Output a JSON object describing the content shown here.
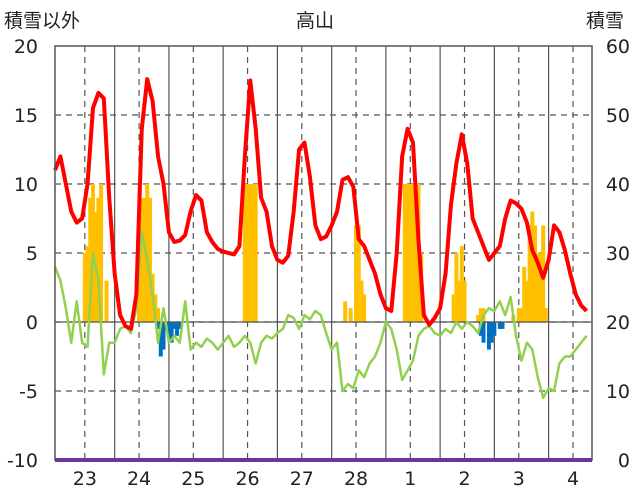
{
  "chart_data": {
    "type": "line",
    "title": "高山",
    "ylabel_left": "積雪以外",
    "ylabel_right": "積雪",
    "ylim_left": [
      -10,
      20
    ],
    "ylim_right": [
      0,
      60
    ],
    "yticks_left": [
      "20",
      "15",
      "10",
      "5",
      "0",
      "-5",
      "-10"
    ],
    "yticks_right": [
      "60",
      "50",
      "40",
      "30",
      "20",
      "10",
      "0"
    ],
    "xticks": [
      "23",
      "24",
      "25",
      "26",
      "27",
      "28",
      "1",
      "2",
      "3",
      "4"
    ],
    "grid": true,
    "colors": {
      "max_temp": "#ff0000",
      "min_temp": "#92d050",
      "snow_pos": "#ffc000",
      "snow_neg": "#0070c0",
      "baseline": "#7030a0"
    },
    "series_red": [
      [
        22.5,
        11.0
      ],
      [
        22.6,
        12.0
      ],
      [
        22.7,
        10.0
      ],
      [
        22.8,
        8.0
      ],
      [
        22.9,
        7.2
      ],
      [
        23.0,
        7.5
      ],
      [
        23.1,
        10.0
      ],
      [
        23.2,
        15.5
      ],
      [
        23.3,
        16.6
      ],
      [
        23.4,
        16.2
      ],
      [
        23.5,
        9.0
      ],
      [
        23.6,
        3.5
      ],
      [
        23.7,
        0.5
      ],
      [
        23.8,
        -0.3
      ],
      [
        23.9,
        -0.5
      ],
      [
        24.0,
        2.0
      ],
      [
        24.1,
        14.0
      ],
      [
        24.2,
        17.6
      ],
      [
        24.3,
        16.0
      ],
      [
        24.4,
        12.0
      ],
      [
        24.5,
        10.0
      ],
      [
        24.6,
        6.5
      ],
      [
        24.7,
        5.8
      ],
      [
        24.8,
        5.9
      ],
      [
        24.9,
        6.3
      ],
      [
        25.0,
        8.0
      ],
      [
        25.1,
        9.2
      ],
      [
        25.2,
        8.8
      ],
      [
        25.3,
        6.5
      ],
      [
        25.4,
        5.8
      ],
      [
        25.5,
        5.3
      ],
      [
        25.6,
        5.1
      ],
      [
        25.7,
        5.0
      ],
      [
        25.8,
        4.9
      ],
      [
        25.9,
        5.5
      ],
      [
        26.0,
        12.0
      ],
      [
        26.1,
        17.5
      ],
      [
        26.2,
        14.0
      ],
      [
        26.3,
        9.0
      ],
      [
        26.4,
        8.0
      ],
      [
        26.5,
        5.5
      ],
      [
        26.6,
        4.5
      ],
      [
        26.7,
        4.3
      ],
      [
        26.8,
        4.8
      ],
      [
        26.9,
        8.0
      ],
      [
        27.0,
        12.5
      ],
      [
        27.1,
        13.0
      ],
      [
        27.2,
        10.5
      ],
      [
        27.3,
        7.0
      ],
      [
        27.4,
        6.0
      ],
      [
        27.5,
        6.2
      ],
      [
        27.6,
        7.0
      ],
      [
        27.7,
        8.0
      ],
      [
        27.8,
        10.3
      ],
      [
        27.9,
        10.5
      ],
      [
        28.0,
        9.8
      ],
      [
        28.1,
        6.0
      ],
      [
        28.2,
        5.5
      ],
      [
        28.3,
        4.5
      ],
      [
        28.4,
        3.5
      ],
      [
        28.5,
        2.0
      ],
      [
        28.6,
        1.0
      ],
      [
        28.7,
        0.8
      ],
      [
        28.8,
        5.0
      ],
      [
        28.9,
        12.0
      ],
      [
        29.0,
        14.0
      ],
      [
        29.1,
        13.0
      ],
      [
        29.2,
        6.0
      ],
      [
        29.3,
        0.5
      ],
      [
        29.4,
        -0.2
      ],
      [
        29.5,
        0.3
      ],
      [
        29.6,
        1.0
      ],
      [
        29.7,
        3.5
      ],
      [
        29.8,
        8.5
      ],
      [
        29.9,
        11.5
      ],
      [
        30.0,
        13.6
      ],
      [
        30.1,
        11.5
      ],
      [
        30.2,
        7.5
      ],
      [
        30.3,
        6.5
      ],
      [
        30.4,
        5.5
      ],
      [
        30.5,
        4.5
      ],
      [
        30.6,
        5.0
      ],
      [
        30.7,
        5.5
      ],
      [
        30.8,
        7.5
      ],
      [
        30.9,
        8.8
      ],
      [
        31.0,
        8.6
      ],
      [
        31.1,
        8.2
      ],
      [
        31.2,
        7.2
      ],
      [
        31.3,
        5.2
      ],
      [
        31.4,
        4.3
      ],
      [
        31.5,
        3.2
      ],
      [
        31.6,
        4.5
      ],
      [
        31.7,
        7.0
      ],
      [
        31.8,
        6.5
      ],
      [
        31.9,
        5.2
      ],
      [
        32.0,
        3.5
      ],
      [
        32.1,
        2.0
      ],
      [
        32.2,
        1.2
      ],
      [
        32.3,
        0.8
      ]
    ],
    "series_green": [
      [
        22.5,
        4.0
      ],
      [
        22.6,
        3.0
      ],
      [
        22.7,
        1.0
      ],
      [
        22.8,
        -1.5
      ],
      [
        22.9,
        1.5
      ],
      [
        23.0,
        -1.5
      ],
      [
        23.1,
        -1.8
      ],
      [
        23.2,
        5.0
      ],
      [
        23.3,
        3.0
      ],
      [
        23.4,
        -3.8
      ],
      [
        23.5,
        -1.5
      ],
      [
        23.6,
        -1.5
      ],
      [
        23.7,
        -0.5
      ],
      [
        23.8,
        -0.3
      ],
      [
        23.9,
        -0.8
      ],
      [
        24.0,
        1.0
      ],
      [
        24.1,
        6.5
      ],
      [
        24.2,
        4.5
      ],
      [
        24.3,
        2.0
      ],
      [
        24.4,
        -1.5
      ],
      [
        24.5,
        1.0
      ],
      [
        24.6,
        -1.5
      ],
      [
        24.7,
        -1.0
      ],
      [
        24.8,
        -1.5
      ],
      [
        24.9,
        1.5
      ],
      [
        25.0,
        -2.0
      ],
      [
        25.1,
        -1.5
      ],
      [
        25.2,
        -1.8
      ],
      [
        25.3,
        -1.2
      ],
      [
        25.4,
        -1.5
      ],
      [
        25.5,
        -2.0
      ],
      [
        25.6,
        -1.5
      ],
      [
        25.7,
        -1.0
      ],
      [
        25.8,
        -1.8
      ],
      [
        25.9,
        -1.5
      ],
      [
        26.0,
        -1.0
      ],
      [
        26.1,
        -1.5
      ],
      [
        26.2,
        -3.0
      ],
      [
        26.3,
        -1.5
      ],
      [
        26.4,
        -1.0
      ],
      [
        26.5,
        -1.2
      ],
      [
        26.6,
        -0.8
      ],
      [
        26.7,
        -0.5
      ],
      [
        26.8,
        0.5
      ],
      [
        26.9,
        0.3
      ],
      [
        27.0,
        -0.5
      ],
      [
        27.1,
        0.5
      ],
      [
        27.2,
        0.2
      ],
      [
        27.3,
        0.8
      ],
      [
        27.4,
        0.5
      ],
      [
        27.5,
        -0.8
      ],
      [
        27.6,
        -2.0
      ],
      [
        27.7,
        -1.5
      ],
      [
        27.8,
        -5.0
      ],
      [
        27.9,
        -4.5
      ],
      [
        28.0,
        -4.8
      ],
      [
        28.1,
        -3.5
      ],
      [
        28.2,
        -4.0
      ],
      [
        28.3,
        -3.0
      ],
      [
        28.4,
        -2.5
      ],
      [
        28.5,
        -1.5
      ],
      [
        28.6,
        0.0
      ],
      [
        28.7,
        -0.5
      ],
      [
        28.8,
        -2.0
      ],
      [
        28.9,
        -4.2
      ],
      [
        29.0,
        -3.5
      ],
      [
        29.1,
        -2.8
      ],
      [
        29.2,
        -1.0
      ],
      [
        29.3,
        -0.5
      ],
      [
        29.4,
        -0.3
      ],
      [
        29.5,
        -0.8
      ],
      [
        29.6,
        -1.0
      ],
      [
        29.7,
        -0.5
      ],
      [
        29.8,
        -0.8
      ],
      [
        29.9,
        0.0
      ],
      [
        30.0,
        -0.5
      ],
      [
        30.1,
        0.0
      ],
      [
        30.2,
        -0.3
      ],
      [
        30.3,
        -0.8
      ],
      [
        30.4,
        0.5
      ],
      [
        30.5,
        1.0
      ],
      [
        30.6,
        0.8
      ],
      [
        30.7,
        1.5
      ],
      [
        30.8,
        0.5
      ],
      [
        30.9,
        1.8
      ],
      [
        31.0,
        -1.0
      ],
      [
        31.1,
        -2.8
      ],
      [
        31.2,
        -1.5
      ],
      [
        31.3,
        -2.0
      ],
      [
        31.4,
        -4.0
      ],
      [
        31.5,
        -5.5
      ],
      [
        31.6,
        -4.8
      ],
      [
        31.7,
        -5.0
      ],
      [
        31.8,
        -3.0
      ],
      [
        31.9,
        -2.5
      ],
      [
        32.0,
        -2.5
      ],
      [
        32.1,
        -2.0
      ],
      [
        32.2,
        -1.5
      ],
      [
        32.3,
        -1.0
      ]
    ],
    "snow_bars": [
      [
        23.05,
        30
      ],
      [
        23.1,
        31
      ],
      [
        23.15,
        38
      ],
      [
        23.2,
        40
      ],
      [
        23.25,
        36
      ],
      [
        23.3,
        38
      ],
      [
        23.35,
        40
      ],
      [
        23.45,
        26
      ],
      [
        24.05,
        36
      ],
      [
        24.1,
        38
      ],
      [
        24.15,
        38
      ],
      [
        24.2,
        40
      ],
      [
        24.25,
        38
      ],
      [
        24.3,
        27
      ],
      [
        24.35,
        24
      ],
      [
        24.4,
        22
      ],
      [
        26.0,
        40
      ],
      [
        26.05,
        40
      ],
      [
        26.1,
        40
      ],
      [
        26.15,
        40
      ],
      [
        26.2,
        40
      ],
      [
        27.85,
        23
      ],
      [
        27.95,
        22
      ],
      [
        28.05,
        34
      ],
      [
        28.1,
        34
      ],
      [
        28.15,
        26
      ],
      [
        28.2,
        24
      ],
      [
        28.95,
        40
      ],
      [
        29.0,
        40
      ],
      [
        29.05,
        40
      ],
      [
        29.1,
        40
      ],
      [
        29.15,
        40
      ],
      [
        29.2,
        40
      ],
      [
        29.25,
        30
      ],
      [
        29.85,
        24
      ],
      [
        29.9,
        30
      ],
      [
        29.95,
        26
      ],
      [
        30.0,
        31
      ],
      [
        30.05,
        26
      ],
      [
        30.3,
        21
      ],
      [
        30.35,
        22
      ],
      [
        30.4,
        22
      ],
      [
        30.95,
        21
      ],
      [
        31.05,
        22
      ],
      [
        31.1,
        22
      ],
      [
        31.15,
        28
      ],
      [
        31.2,
        26
      ],
      [
        31.25,
        34
      ],
      [
        31.3,
        36
      ],
      [
        31.35,
        34
      ],
      [
        31.4,
        30
      ],
      [
        31.45,
        30
      ],
      [
        31.5,
        34
      ],
      [
        31.55,
        22
      ]
    ],
    "snow_neg_bars": [
      [
        24.4,
        19
      ],
      [
        24.45,
        15
      ],
      [
        24.5,
        16
      ],
      [
        24.6,
        18
      ],
      [
        24.65,
        17
      ],
      [
        24.7,
        19
      ],
      [
        24.75,
        18
      ],
      [
        24.8,
        19
      ],
      [
        30.35,
        18
      ],
      [
        30.4,
        17
      ],
      [
        30.5,
        16
      ],
      [
        30.55,
        17
      ],
      [
        30.6,
        18
      ],
      [
        30.7,
        19
      ],
      [
        30.75,
        19
      ]
    ]
  }
}
